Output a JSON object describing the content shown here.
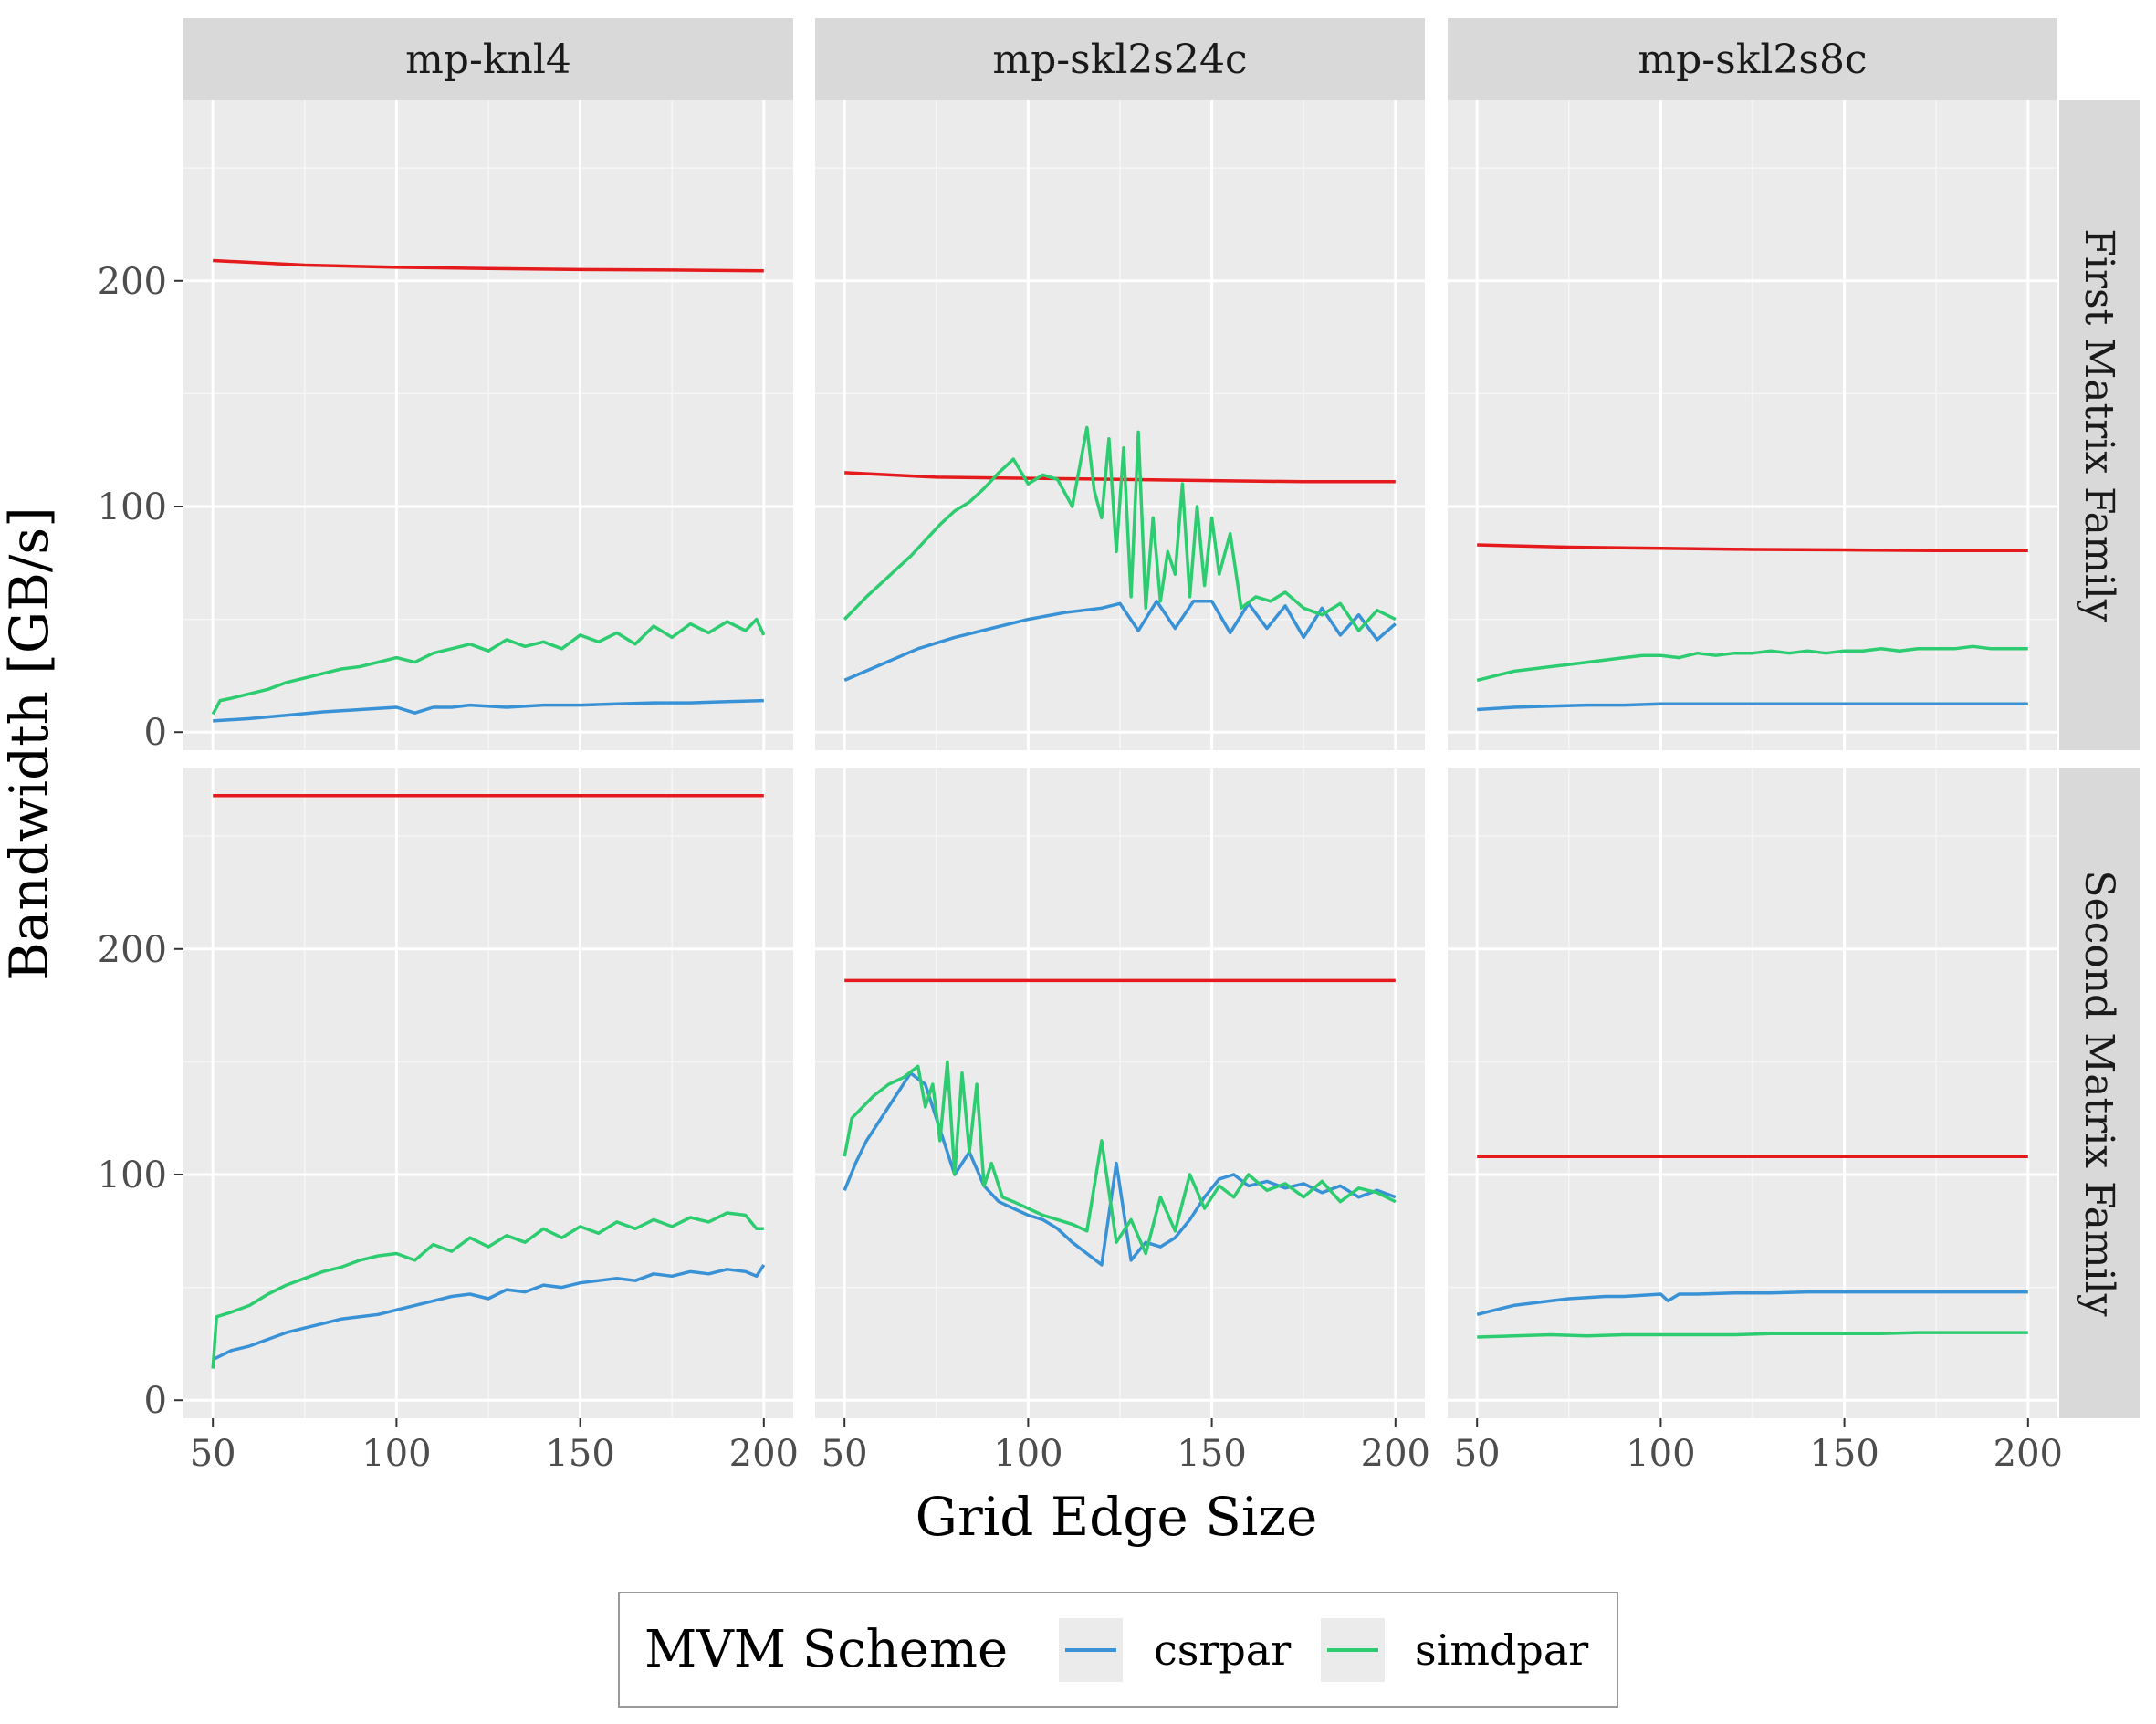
{
  "chart_data": {
    "type": "line",
    "xlabel": "Grid Edge Size",
    "ylabel": "Bandwidth [GB/s]",
    "xlim": [
      42,
      208
    ],
    "ylim": [
      -8,
      280
    ],
    "xticks": [
      50,
      100,
      150,
      200
    ],
    "yticks": [
      0,
      100,
      200
    ],
    "grid": true,
    "columns": [
      "mp-knl4",
      "mp-skl2s24c",
      "mp-skl2s8c"
    ],
    "rows": [
      "First Matrix Family",
      "Second Matrix Family"
    ],
    "legend": {
      "title": "MVM Scheme",
      "position": "bottom",
      "entries": [
        {
          "label": "csrpar",
          "color": "#3a92d6"
        },
        {
          "label": "simdpar",
          "color": "#2ecc71"
        }
      ]
    },
    "colors": {
      "csrpar": "#3a92d6",
      "simdpar": "#2ecc71",
      "peak": "#e41a1c"
    },
    "panels": [
      {
        "row": 0,
        "col": 0,
        "peak": {
          "x": [
            50,
            75,
            100,
            125,
            150,
            175,
            200
          ],
          "y": [
            209,
            207,
            206,
            205.5,
            205,
            204.8,
            204.5
          ]
        },
        "csrpar": {
          "x": [
            50,
            60,
            70,
            80,
            90,
            100,
            105,
            110,
            115,
            120,
            130,
            140,
            150,
            160,
            170,
            180,
            190,
            200
          ],
          "y": [
            5,
            6,
            7.5,
            9,
            10,
            11,
            8.5,
            11,
            11,
            12,
            11,
            12,
            12,
            12.5,
            13,
            13,
            13.5,
            14
          ]
        },
        "simdpar": {
          "x": [
            50,
            52,
            55,
            60,
            65,
            70,
            75,
            80,
            85,
            90,
            95,
            100,
            105,
            110,
            115,
            120,
            125,
            130,
            135,
            140,
            145,
            150,
            155,
            160,
            165,
            170,
            175,
            180,
            185,
            190,
            195,
            198,
            200
          ],
          "y": [
            8,
            14,
            15,
            17,
            19,
            22,
            24,
            26,
            28,
            29,
            31,
            33,
            31,
            35,
            37,
            39,
            36,
            41,
            38,
            40,
            37,
            43,
            40,
            44,
            39,
            47,
            42,
            48,
            44,
            49,
            45,
            50,
            43
          ]
        }
      },
      {
        "row": 0,
        "col": 1,
        "peak": {
          "x": [
            50,
            75,
            100,
            125,
            150,
            175,
            200
          ],
          "y": [
            115,
            113,
            112.5,
            112,
            111.5,
            111,
            111
          ]
        },
        "csrpar": {
          "x": [
            50,
            60,
            70,
            80,
            90,
            100,
            110,
            120,
            125,
            130,
            135,
            140,
            145,
            150,
            155,
            160,
            165,
            170,
            175,
            180,
            185,
            190,
            195,
            200
          ],
          "y": [
            23,
            30,
            37,
            42,
            46,
            50,
            53,
            55,
            57,
            45,
            58,
            46,
            58,
            58,
            44,
            57,
            46,
            56,
            42,
            55,
            43,
            52,
            41,
            48
          ]
        },
        "simdpar": {
          "x": [
            50,
            53,
            56,
            60,
            64,
            68,
            72,
            76,
            80,
            84,
            88,
            92,
            96,
            100,
            104,
            108,
            112,
            116,
            118,
            120,
            122,
            124,
            126,
            128,
            130,
            132,
            134,
            136,
            138,
            140,
            142,
            144,
            146,
            148,
            150,
            152,
            155,
            158,
            162,
            166,
            170,
            175,
            180,
            185,
            190,
            195,
            200
          ],
          "y": [
            50,
            55,
            60,
            66,
            72,
            78,
            85,
            92,
            98,
            102,
            108,
            115,
            121,
            110,
            114,
            112,
            100,
            135,
            107,
            95,
            130,
            80,
            126,
            60,
            133,
            55,
            95,
            58,
            80,
            70,
            110,
            60,
            100,
            65,
            95,
            70,
            88,
            55,
            60,
            58,
            62,
            55,
            52,
            57,
            45,
            54,
            50
          ]
        }
      },
      {
        "row": 0,
        "col": 2,
        "peak": {
          "x": [
            50,
            75,
            100,
            125,
            150,
            175,
            200
          ],
          "y": [
            83,
            82,
            81.5,
            81,
            80.8,
            80.5,
            80.5
          ]
        },
        "csrpar": {
          "x": [
            50,
            60,
            70,
            80,
            90,
            100,
            110,
            120,
            130,
            140,
            150,
            160,
            170,
            180,
            190,
            200
          ],
          "y": [
            10,
            11,
            11.5,
            12,
            12,
            12.5,
            12.5,
            12.5,
            12.5,
            12.5,
            12.5,
            12.5,
            12.5,
            12.5,
            12.5,
            12.5
          ]
        },
        "simdpar": {
          "x": [
            50,
            55,
            60,
            65,
            70,
            75,
            80,
            85,
            90,
            95,
            100,
            105,
            110,
            115,
            120,
            125,
            130,
            135,
            140,
            145,
            150,
            155,
            160,
            165,
            170,
            175,
            180,
            185,
            190,
            195,
            200
          ],
          "y": [
            23,
            25,
            27,
            28,
            29,
            30,
            31,
            32,
            33,
            34,
            34,
            33,
            35,
            34,
            35,
            35,
            36,
            35,
            36,
            35,
            36,
            36,
            37,
            36,
            37,
            37,
            37,
            38,
            37,
            37,
            37
          ]
        }
      },
      {
        "row": 1,
        "col": 0,
        "peak": {
          "x": [
            50,
            125,
            200
          ],
          "y": [
            268,
            268,
            268
          ]
        },
        "csrpar": {
          "x": [
            50,
            55,
            60,
            65,
            70,
            75,
            80,
            85,
            90,
            95,
            100,
            105,
            110,
            115,
            120,
            125,
            130,
            135,
            140,
            145,
            150,
            155,
            160,
            165,
            170,
            175,
            180,
            185,
            190,
            195,
            198,
            200
          ],
          "y": [
            18,
            22,
            24,
            27,
            30,
            32,
            34,
            36,
            37,
            38,
            40,
            42,
            44,
            46,
            47,
            45,
            49,
            48,
            51,
            50,
            52,
            53,
            54,
            53,
            56,
            55,
            57,
            56,
            58,
            57,
            55,
            60
          ]
        },
        "simdpar": {
          "x": [
            50,
            51,
            55,
            60,
            65,
            70,
            75,
            80,
            85,
            90,
            95,
            100,
            105,
            110,
            115,
            120,
            125,
            130,
            135,
            140,
            145,
            150,
            155,
            160,
            165,
            170,
            175,
            180,
            185,
            190,
            195,
            198,
            200
          ],
          "y": [
            14,
            37,
            39,
            42,
            47,
            51,
            54,
            57,
            59,
            62,
            64,
            65,
            62,
            69,
            66,
            72,
            68,
            73,
            70,
            76,
            72,
            77,
            74,
            79,
            76,
            80,
            77,
            81,
            79,
            83,
            82,
            76,
            76
          ]
        }
      },
      {
        "row": 1,
        "col": 1,
        "peak": {
          "x": [
            50,
            125,
            200
          ],
          "y": [
            186,
            186,
            186
          ]
        },
        "csrpar": {
          "x": [
            50,
            53,
            56,
            60,
            64,
            68,
            72,
            76,
            80,
            84,
            88,
            92,
            96,
            100,
            104,
            108,
            112,
            116,
            120,
            124,
            128,
            132,
            136,
            140,
            144,
            148,
            152,
            156,
            160,
            165,
            170,
            175,
            180,
            185,
            190,
            195,
            200
          ],
          "y": [
            93,
            105,
            115,
            125,
            135,
            145,
            140,
            120,
            100,
            110,
            95,
            88,
            85,
            82,
            80,
            76,
            70,
            65,
            60,
            105,
            62,
            70,
            68,
            72,
            80,
            90,
            98,
            100,
            95,
            97,
            94,
            96,
            92,
            95,
            90,
            93,
            90
          ]
        },
        "simdpar": {
          "x": [
            50,
            52,
            55,
            58,
            62,
            66,
            70,
            72,
            74,
            76,
            78,
            80,
            82,
            84,
            86,
            88,
            90,
            93,
            96,
            100,
            104,
            108,
            112,
            116,
            120,
            124,
            128,
            132,
            136,
            140,
            144,
            148,
            152,
            156,
            160,
            165,
            170,
            175,
            180,
            185,
            190,
            195,
            200
          ],
          "y": [
            108,
            125,
            130,
            135,
            140,
            143,
            148,
            130,
            140,
            115,
            150,
            100,
            145,
            110,
            140,
            95,
            105,
            90,
            88,
            85,
            82,
            80,
            78,
            75,
            115,
            70,
            80,
            65,
            90,
            75,
            100,
            85,
            95,
            90,
            100,
            93,
            96,
            90,
            97,
            88,
            94,
            92,
            88
          ]
        }
      },
      {
        "row": 1,
        "col": 2,
        "peak": {
          "x": [
            50,
            125,
            200
          ],
          "y": [
            108,
            108,
            108
          ]
        },
        "csrpar": {
          "x": [
            50,
            55,
            60,
            65,
            70,
            75,
            80,
            85,
            90,
            95,
            100,
            102,
            105,
            110,
            120,
            130,
            140,
            150,
            160,
            170,
            180,
            190,
            200
          ],
          "y": [
            38,
            40,
            42,
            43,
            44,
            45,
            45.5,
            46,
            46,
            46.5,
            47,
            44,
            47,
            47,
            47.5,
            47.5,
            48,
            48,
            48,
            48,
            48,
            48,
            48
          ]
        },
        "simdpar": {
          "x": [
            50,
            60,
            70,
            80,
            90,
            100,
            110,
            120,
            130,
            140,
            150,
            160,
            170,
            180,
            190,
            200
          ],
          "y": [
            28,
            28.5,
            29,
            28.5,
            29,
            29,
            29,
            29,
            29.5,
            29.5,
            29.5,
            29.5,
            30,
            30,
            30,
            30
          ]
        }
      }
    ]
  }
}
